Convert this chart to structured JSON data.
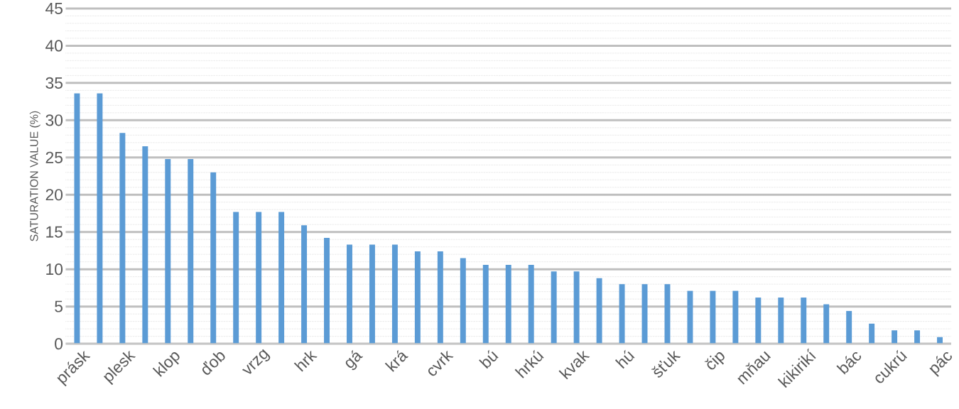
{
  "chart_data": {
    "type": "bar",
    "ylabel": "SATURATION VALUE (%)",
    "categories": [
      "prásk",
      null,
      "plesk",
      null,
      "klop",
      null,
      "ďob",
      null,
      "vrzg",
      null,
      "hrk",
      null,
      "gá",
      null,
      "krá",
      null,
      "cvrk",
      null,
      "bú",
      null,
      "hrkú",
      null,
      "kvak",
      null,
      "hú",
      null,
      "šťuk",
      null,
      "čip",
      null,
      "mňau",
      null,
      "kikirikí",
      null,
      "bác",
      null,
      "cukrú",
      null,
      "pác"
    ],
    "values": [
      33.6,
      33.6,
      28.3,
      26.5,
      24.8,
      24.8,
      23.0,
      17.7,
      17.7,
      17.7,
      15.9,
      14.2,
      13.3,
      13.3,
      13.3,
      12.4,
      12.4,
      11.5,
      10.6,
      10.6,
      10.6,
      9.7,
      9.7,
      8.8,
      8.0,
      8.0,
      8.0,
      7.1,
      7.1,
      7.1,
      6.2,
      6.2,
      6.2,
      5.3,
      4.4,
      2.7,
      1.8,
      1.8,
      0.9
    ],
    "color": "#5b9bd5",
    "ylim": [
      0,
      45
    ],
    "yticks": [
      0,
      5,
      10,
      15,
      20,
      25,
      30,
      35,
      40,
      45
    ],
    "grid": "y"
  }
}
